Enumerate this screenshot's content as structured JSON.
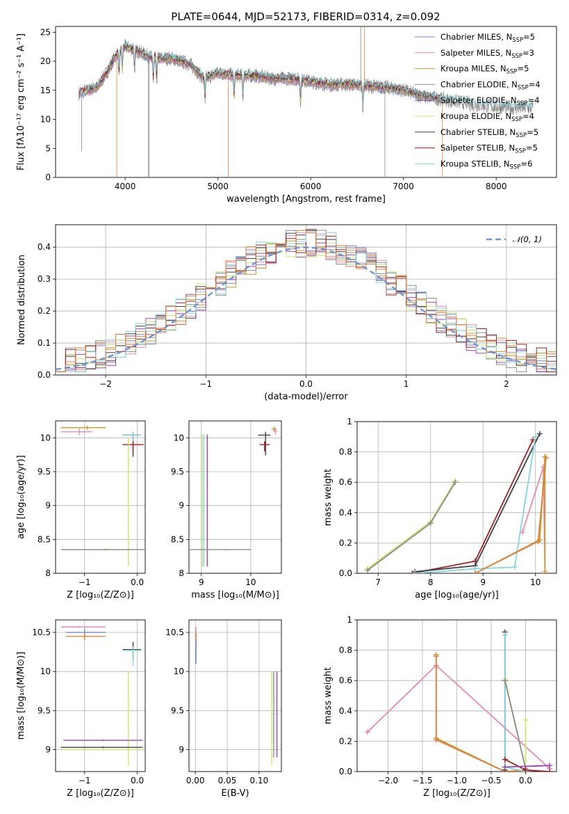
{
  "title": "PLATE=0644, MJD=52173, FIBERID=0314, z=0.092",
  "colors": {
    "Chabrier MILES": "#6f86c9",
    "Salpeter MILES": "#e889b5",
    "Kroupa MILES": "#c79a2a",
    "Chabrier ELODIE": "#8c8c8c",
    "Salpeter ELODIE": "#9b45b8",
    "Kroupa ELODIE": "#c9e86b",
    "Chabrier STELIB": "#404040",
    "Salpeter STELIB": "#a11f1f",
    "Kroupa STELIB": "#7fd6de",
    "Orange": "#e0803a",
    "Normal": "#6b93d6"
  },
  "chart_data": [
    {
      "id": "spectrum",
      "type": "line",
      "xlabel": "wavelength [Angstrom, rest frame]",
      "ylabel": "Flux [fλ10⁻¹⁷ erg cm⁻² s⁻¹ A⁻¹]",
      "xlim": [
        3250,
        8650
      ],
      "ylim": [
        0,
        26
      ],
      "xticks": [
        4000,
        5000,
        6000,
        7000,
        8000
      ],
      "yticks": [
        0,
        5,
        10,
        15,
        20,
        25
      ],
      "legend_position": "upper-right",
      "legend": [
        {
          "name": "Chabrier MILES",
          "base": "Chabrier MILES, N",
          "sub": "SSP",
          "tail": "=5"
        },
        {
          "name": "Salpeter MILES",
          "base": "Salpeter MILES, N",
          "sub": "SSP",
          "tail": "=3"
        },
        {
          "name": "Kroupa MILES",
          "base": "Kroupa MILES, N",
          "sub": "SSP",
          "tail": "=5"
        },
        {
          "name": "Chabrier ELODIE",
          "base": "Chabrier ELODIE, N",
          "sub": "SSP",
          "tail": "=4"
        },
        {
          "name": "Salpeter ELODIE",
          "base": "Salpeter ELODIE, N",
          "sub": "SSP",
          "tail": "=4"
        },
        {
          "name": "Kroupa ELODIE",
          "base": "Kroupa ELODIE, N",
          "sub": "SSP",
          "tail": "=4"
        },
        {
          "name": "Chabrier STELIB",
          "base": "Chabrier STELIB, N",
          "sub": "SSP",
          "tail": "=5"
        },
        {
          "name": "Salpeter STELIB",
          "base": "Salpeter STELIB, N",
          "sub": "SSP",
          "tail": "=5"
        },
        {
          "name": "Kroupa STELIB",
          "base": "Kroupa STELIB, N",
          "sub": "SSP",
          "tail": "=6"
        }
      ],
      "continuum": [
        [
          3500,
          14.5
        ],
        [
          3700,
          15.5
        ],
        [
          3800,
          18
        ],
        [
          3900,
          21
        ],
        [
          4000,
          22.5
        ],
        [
          4100,
          22
        ],
        [
          4300,
          20.5
        ],
        [
          4500,
          20.5
        ],
        [
          4700,
          19.5
        ],
        [
          4850,
          17
        ],
        [
          5000,
          18
        ],
        [
          5200,
          17.5
        ],
        [
          5400,
          17.5
        ],
        [
          5600,
          17
        ],
        [
          5800,
          17
        ],
        [
          6000,
          16.5
        ],
        [
          6200,
          16
        ],
        [
          6400,
          16
        ],
        [
          6600,
          15.8
        ],
        [
          6800,
          15.5
        ],
        [
          7000,
          15
        ],
        [
          7200,
          14
        ],
        [
          7400,
          13.5
        ],
        [
          7600,
          13
        ],
        [
          7800,
          12.5
        ],
        [
          8000,
          12.2
        ],
        [
          8200,
          12
        ],
        [
          8400,
          12
        ]
      ],
      "absorption_lines": [
        3934,
        3969,
        4102,
        4304,
        4340,
        4861,
        5175,
        5270,
        5890,
        6563
      ],
      "model_ranges": [
        [
          3500,
          7420
        ],
        [
          3600,
          6800
        ],
        [
          3580,
          7400
        ],
        [
          3500,
          7440
        ],
        [
          3600,
          6800
        ],
        [
          3550,
          6800
        ],
        [
          3600,
          7400
        ],
        [
          3500,
          7400
        ],
        [
          3600,
          8400
        ]
      ]
    },
    {
      "id": "residuals",
      "type": "histogram",
      "xlabel": "(data-model)/error",
      "ylabel": "Normed distribution",
      "xlim": [
        -2.5,
        2.5
      ],
      "ylim": [
        0,
        0.47
      ],
      "xticks": [
        -2,
        -1,
        0,
        1,
        2
      ],
      "yticks": [
        0.0,
        0.1,
        0.2,
        0.3,
        0.4
      ],
      "bin_width": 0.1,
      "bin_start": -2.5,
      "normal_label": "𝒩(0, 1)",
      "legend_position": "upper-right"
    },
    {
      "id": "age_vs_Z",
      "type": "errorbar",
      "xlabel": "Z [log₁₀(Z/Z⊙)]",
      "ylabel": "age  [log₁₀(age/yr)]",
      "xlim": [
        -1.55,
        0.15
      ],
      "ylim": [
        8.0,
        10.25
      ],
      "xticks": [
        -1,
        0
      ],
      "yticks": [
        8.0,
        8.5,
        9.0,
        9.5,
        10.0
      ],
      "points": [
        {
          "series": "Kroupa MILES",
          "x": -0.95,
          "y": 10.15,
          "xerr": [
            0.5,
            0.35
          ],
          "yerr": [
            0.03,
            0.03
          ]
        },
        {
          "series": "Salpeter MILES",
          "x": -1.1,
          "y": 10.09,
          "xerr": [
            0.35,
            0.25
          ],
          "yerr": [
            0.05,
            0.05
          ]
        },
        {
          "series": "Chabrier STELIB",
          "x": -0.08,
          "y": 10.04,
          "xerr": [
            0.2,
            0.15
          ],
          "yerr": [
            0.32,
            0.05
          ]
        },
        {
          "series": "Kroupa STELIB",
          "x": -0.08,
          "y": 10.04,
          "xerr": [
            0.2,
            0.15
          ],
          "yerr": [
            0.1,
            0.05
          ]
        },
        {
          "series": "Salpeter STELIB",
          "x": -0.08,
          "y": 9.9,
          "xerr": [
            0.2,
            0.2
          ],
          "yerr": [
            0.1,
            0.05
          ]
        },
        {
          "series": "Kroupa ELODIE",
          "x": -0.17,
          "y": 9.1,
          "xerr": [
            0.01,
            0.01
          ],
          "yerr": [
            1.0,
            0.9
          ]
        },
        {
          "series": "Kroupa ELODIE",
          "x": -0.6,
          "y": 8.35,
          "xerr": [
            0.85,
            0.75
          ],
          "yerr": [
            0.02,
            0.02
          ]
        },
        {
          "series": "Chabrier ELODIE",
          "x": -0.6,
          "y": 8.35,
          "xerr": [
            0.85,
            0.75
          ],
          "yerr": [
            0.01,
            0.01
          ]
        }
      ]
    },
    {
      "id": "age_vs_mass",
      "type": "errorbar",
      "xlabel": "mass [log₁₀(M/M⊙)]",
      "ylabel": "",
      "xlim": [
        8.75,
        10.62
      ],
      "ylim": [
        8.0,
        10.25
      ],
      "xticks": [
        9,
        10
      ],
      "yticks": [
        8.0,
        8.5,
        9.0,
        9.5,
        10.0
      ],
      "points": [
        {
          "series": "Kroupa ELODIE",
          "x": 9.02,
          "y": 9.1,
          "xerr": [
            0.01,
            0.01
          ],
          "yerr": [
            1.0,
            0.95
          ]
        },
        {
          "series": "Kroupa STELIB",
          "x": 9.05,
          "y": 9.1,
          "xerr": [
            0.01,
            0.01
          ],
          "yerr": [
            1.0,
            0.95
          ]
        },
        {
          "series": "Salpeter ELODIE",
          "x": 9.12,
          "y": 9.1,
          "xerr": [
            0.01,
            0.01
          ],
          "yerr": [
            1.0,
            0.95
          ]
        },
        {
          "series": "Chabrier ELODIE",
          "x": 9.5,
          "y": 8.35,
          "xerr": [
            0.75,
            0.5
          ],
          "yerr": [
            0.01,
            0.01
          ]
        },
        {
          "series": "Chabrier STELIB",
          "x": 10.3,
          "y": 10.04,
          "xerr": [
            0.15,
            0.1
          ],
          "yerr": [
            0.3,
            0.05
          ]
        },
        {
          "series": "Salpeter STELIB",
          "x": 10.28,
          "y": 9.9,
          "xerr": [
            0.1,
            0.1
          ],
          "yerr": [
            0.1,
            0.05
          ]
        },
        {
          "series": "Kroupa MILES",
          "x": 10.47,
          "y": 10.13,
          "xerr": [
            0.05,
            0.05
          ],
          "yerr": [
            0.04,
            0.04
          ]
        },
        {
          "series": "Salpeter MILES",
          "x": 10.5,
          "y": 10.1,
          "xerr": [
            0.04,
            0.04
          ],
          "yerr": [
            0.05,
            0.05
          ]
        }
      ]
    },
    {
      "id": "weight_vs_age",
      "type": "line",
      "xlabel": "age  [log₁₀(age/yr)]",
      "ylabel": "mass weight",
      "xlim": [
        6.6,
        10.4
      ],
      "ylim": [
        0,
        1.0
      ],
      "xticks": [
        7,
        8,
        9,
        10
      ],
      "yticks": [
        0.0,
        0.2,
        0.4,
        0.6,
        0.8,
        1.0
      ],
      "series": [
        {
          "name": "Kroupa ELODIE",
          "x": [
            6.8,
            8.0,
            8.47
          ],
          "y": [
            0.03,
            0.34,
            0.61
          ]
        },
        {
          "name": "Chabrier ELODIE",
          "x": [
            6.8,
            8.0,
            8.47
          ],
          "y": [
            0.02,
            0.33,
            0.6
          ]
        },
        {
          "name": "Salpeter STELIB",
          "x": [
            7.65,
            8.85,
            9.95
          ],
          "y": [
            0.0,
            0.08,
            0.88
          ]
        },
        {
          "name": "Chabrier STELIB",
          "x": [
            7.7,
            8.85,
            10.08
          ],
          "y": [
            0.01,
            0.05,
            0.92
          ]
        },
        {
          "name": "Kroupa STELIB",
          "x": [
            7.7,
            8.85,
            9.6,
            10.0
          ],
          "y": [
            0.0,
            0.03,
            0.04,
            0.9
          ]
        },
        {
          "name": "Salpeter MILES",
          "x": [
            9.75,
            10.15,
            10.18
          ],
          "y": [
            0.27,
            0.7,
            0.01
          ]
        },
        {
          "name": "Kroupa MILES",
          "x": [
            8.85,
            10.08,
            10.18,
            10.18
          ],
          "y": [
            0.0,
            0.22,
            0.77,
            0.0
          ]
        },
        {
          "name": "Orange",
          "x": [
            8.85,
            10.05,
            10.2
          ],
          "y": [
            0.0,
            0.21,
            0.76
          ]
        }
      ]
    },
    {
      "id": "mass_vs_Z",
      "type": "errorbar",
      "xlabel": "Z [log₁₀(Z/Z⊙)]",
      "ylabel": "mass [log₁₀(M/M⊙)]",
      "xlim": [
        -1.55,
        0.15
      ],
      "ylim": [
        8.72,
        10.66
      ],
      "xticks": [
        -1,
        0
      ],
      "yticks": [
        9.0,
        9.5,
        10.0,
        10.5
      ],
      "points": [
        {
          "series": "Salpeter MILES",
          "x": -1.1,
          "y": 10.57,
          "xerr": [
            0.35,
            0.5
          ],
          "yerr": [
            0.01,
            0.01
          ]
        },
        {
          "series": "Chabrier MILES",
          "x": -1.0,
          "y": 10.5,
          "xerr": [
            0.35,
            0.4
          ],
          "yerr": [
            0.05,
            0.05
          ]
        },
        {
          "series": "Orange",
          "x": -1.0,
          "y": 10.45,
          "xerr": [
            0.35,
            0.4
          ],
          "yerr": [
            0.05,
            0.05
          ]
        },
        {
          "series": "Chabrier STELIB",
          "x": -0.08,
          "y": 10.28,
          "xerr": [
            0.2,
            0.15
          ],
          "yerr": [
            0.12,
            0.1
          ]
        },
        {
          "series": "Kroupa STELIB",
          "x": -0.08,
          "y": 10.27,
          "xerr": [
            0.2,
            0.15
          ],
          "yerr": [
            0.2,
            0.05
          ]
        },
        {
          "series": "Kroupa ELODIE",
          "x": -0.17,
          "y": 9.4,
          "xerr": [
            0.01,
            0.01
          ],
          "yerr": [
            0.6,
            0.6
          ]
        },
        {
          "series": "Salpeter ELODIE",
          "x": -0.65,
          "y": 9.12,
          "xerr": [
            0.75,
            0.75
          ],
          "yerr": [
            0.01,
            0.01
          ]
        },
        {
          "series": "Chabrier STELIB",
          "x": -0.65,
          "y": 9.03,
          "xerr": [
            0.8,
            0.75
          ],
          "yerr": [
            0.01,
            0.01
          ]
        },
        {
          "series": "Kroupa ELODIE",
          "x": -0.65,
          "y": 9.0,
          "xerr": [
            0.8,
            0.75
          ],
          "yerr": [
            0.01,
            0.01
          ]
        }
      ]
    },
    {
      "id": "mass_vs_EBV",
      "type": "errorbar",
      "xlabel": "E(B-V)",
      "ylabel": "",
      "xlim": [
        -0.01,
        0.135
      ],
      "ylim": [
        8.72,
        10.66
      ],
      "xticks": [
        0.0,
        0.05,
        0.1
      ],
      "xticklabels": [
        "0.00",
        "0.05",
        "0.10"
      ],
      "yticks": [
        9.0,
        9.5,
        10.0,
        10.5
      ],
      "points": [
        {
          "series": "Salpeter MILES",
          "x": 0.001,
          "y": 10.45,
          "xerr": [
            0.001,
            0.001
          ],
          "yerr": [
            0.12,
            0.12
          ]
        },
        {
          "series": "Chabrier MILES",
          "x": 0.001,
          "y": 10.3,
          "xerr": [
            0.001,
            0.001
          ],
          "yerr": [
            0.2,
            0.1
          ]
        },
        {
          "series": "Orange",
          "x": 0.001,
          "y": 10.45,
          "xerr": [
            0.001,
            0.001
          ],
          "yerr": [
            0.05,
            0.05
          ]
        },
        {
          "series": "Kroupa ELODIE",
          "x": 0.12,
          "y": 9.4,
          "xerr": [
            0.001,
            0.001
          ],
          "yerr": [
            0.6,
            0.6
          ]
        },
        {
          "series": "Chabrier ELODIE",
          "x": 0.123,
          "y": 9.45,
          "xerr": [
            0.001,
            0.001
          ],
          "yerr": [
            0.55,
            0.55
          ]
        },
        {
          "series": "Salpeter ELODIE",
          "x": 0.128,
          "y": 9.45,
          "xerr": [
            0.001,
            0.001
          ],
          "yerr": [
            0.55,
            0.55
          ]
        }
      ]
    },
    {
      "id": "weight_vs_Z",
      "type": "line",
      "xlabel": "Z [log₁₀(Z/Z⊙)]",
      "ylabel": "mass weight",
      "xlim": [
        -2.45,
        0.45
      ],
      "ylim": [
        0,
        1.0
      ],
      "xticks": [
        -2.0,
        -1.5,
        -1.0,
        -0.5,
        0.0
      ],
      "xticklabels": [
        "−2.0",
        "−1.5",
        "−1.0",
        "−0.5",
        "0.0"
      ],
      "yticks": [
        0.0,
        0.2,
        0.4,
        0.6,
        0.8,
        1.0
      ],
      "series": [
        {
          "name": "Salpeter MILES",
          "x": [
            -2.3,
            -1.3,
            0.35
          ],
          "y": [
            0.26,
            0.7,
            0.02
          ]
        },
        {
          "name": "Kroupa MILES",
          "x": [
            -1.3,
            -1.3,
            -0.3,
            0.0
          ],
          "y": [
            0.77,
            0.22,
            0.0,
            0.0
          ]
        },
        {
          "name": "Orange",
          "x": [
            -1.3,
            -1.3,
            -0.3,
            0.0
          ],
          "y": [
            0.76,
            0.21,
            0.0,
            0.01
          ]
        },
        {
          "name": "Chabrier STELIB",
          "x": [
            -0.3,
            -0.3,
            -0.3
          ],
          "y": [
            0.92,
            0.6,
            0.01
          ]
        },
        {
          "name": "Kroupa STELIB",
          "x": [
            -0.3,
            -0.3,
            0.0
          ],
          "y": [
            0.9,
            0.03,
            0.0
          ]
        },
        {
          "name": "Kroupa ELODIE",
          "x": [
            -0.3,
            0.0,
            0.0
          ],
          "y": [
            0.61,
            0.02,
            0.34
          ]
        },
        {
          "name": "Chabrier ELODIE",
          "x": [
            -0.3,
            0.0
          ],
          "y": [
            0.6,
            0.02
          ]
        },
        {
          "name": "Salpeter STELIB",
          "x": [
            -0.3,
            0.0,
            0.35
          ],
          "y": [
            0.08,
            0.01,
            0.0
          ]
        },
        {
          "name": "Salpeter ELODIE",
          "x": [
            -0.3,
            0.35
          ],
          "y": [
            0.03,
            0.04
          ]
        }
      ]
    }
  ]
}
